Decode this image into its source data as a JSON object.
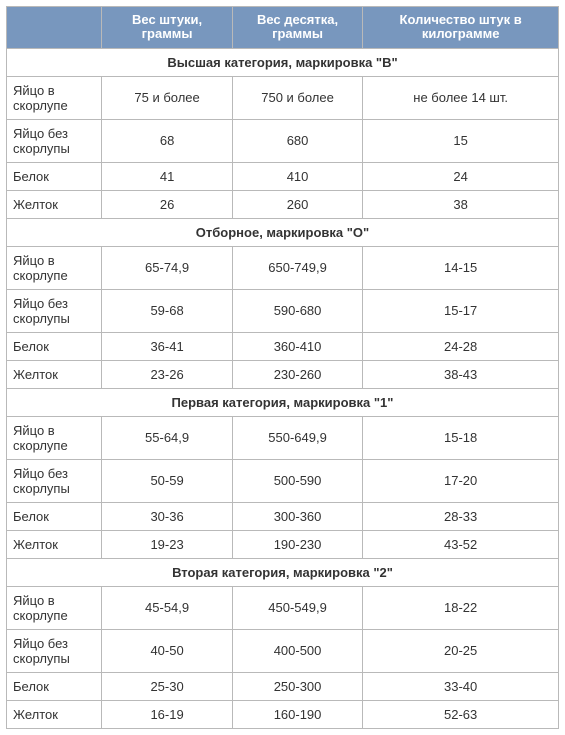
{
  "colors": {
    "header_bg": "#7897BE",
    "header_text": "#FFFFFF",
    "cell_text": "#333333",
    "border": "#B9B9B9",
    "bg": "#FFFFFF"
  },
  "font_sizes": {
    "header_pt": 10,
    "cell_pt": 10
  },
  "table": {
    "columns": [
      "",
      "Вес штуки, граммы",
      "Вес десятка, граммы",
      "Количество штук в килограмме"
    ],
    "sections": [
      {
        "title": "Высшая категория, маркировка \"В\"",
        "rows": [
          {
            "label": "Яйцо в скорлупе",
            "unit": "75 и более",
            "ten": "750 и более",
            "perkg": "не более 14 шт."
          },
          {
            "label": "Яйцо без скорлупы",
            "unit": "68",
            "ten": "680",
            "perkg": "15"
          },
          {
            "label": "Белок",
            "unit": "41",
            "ten": "410",
            "perkg": "24"
          },
          {
            "label": "Желток",
            "unit": "26",
            "ten": "260",
            "perkg": "38"
          }
        ]
      },
      {
        "title": "Отборное, маркировка \"О\"",
        "rows": [
          {
            "label": "Яйцо в скорлупе",
            "unit": "65-74,9",
            "ten": "650-749,9",
            "perkg": "14-15"
          },
          {
            "label": "Яйцо без скорлупы",
            "unit": "59-68",
            "ten": "590-680",
            "perkg": "15-17"
          },
          {
            "label": "Белок",
            "unit": "36-41",
            "ten": "360-410",
            "perkg": "24-28"
          },
          {
            "label": "Желток",
            "unit": "23-26",
            "ten": "230-260",
            "perkg": "38-43"
          }
        ]
      },
      {
        "title": "Первая категория, маркировка \"1\"",
        "rows": [
          {
            "label": "Яйцо в скорлупе",
            "unit": "55-64,9",
            "ten": "550-649,9",
            "perkg": "15-18"
          },
          {
            "label": "Яйцо без скорлупы",
            "unit": "50-59",
            "ten": "500-590",
            "perkg": "17-20"
          },
          {
            "label": "Белок",
            "unit": "30-36",
            "ten": "300-360",
            "perkg": "28-33"
          },
          {
            "label": "Желток",
            "unit": "19-23",
            "ten": "190-230",
            "perkg": "43-52"
          }
        ]
      },
      {
        "title": "Вторая категория, маркировка \"2\"",
        "rows": [
          {
            "label": "Яйцо в скорлупе",
            "unit": "45-54,9",
            "ten": "450-549,9",
            "perkg": "18-22"
          },
          {
            "label": "Яйцо без скорлупы",
            "unit": "40-50",
            "ten": "400-500",
            "perkg": "20-25"
          },
          {
            "label": "Белок",
            "unit": "25-30",
            "ten": "250-300",
            "perkg": "33-40"
          },
          {
            "label": "Желток",
            "unit": "16-19",
            "ten": "160-190",
            "perkg": "52-63"
          }
        ]
      }
    ]
  }
}
